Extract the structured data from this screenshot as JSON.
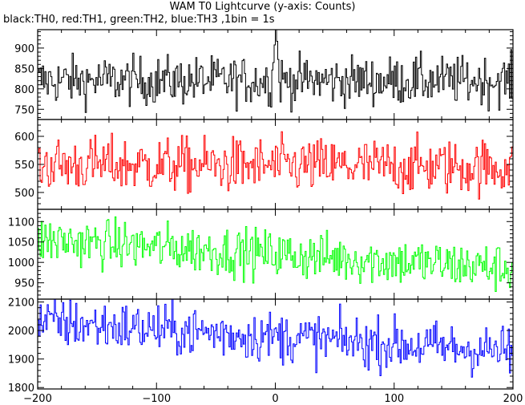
{
  "chart_data": {
    "type": "line",
    "title": "WAM T0 Lightcurve (y-axis: Counts)",
    "subtitle": "black:TH0, red:TH1, green:TH2, blue:TH3 ,1bin = 1s",
    "xlabel": "",
    "ylabel": "",
    "xlim": [
      -200,
      200
    ],
    "x_ticks": [
      -200,
      -100,
      0,
      100,
      200
    ],
    "grid": false,
    "legend": "none",
    "panels": [
      {
        "name": "TH0",
        "color": "#000000",
        "ylim": [
          725,
          945
        ],
        "y_ticks": [
          750,
          800,
          850,
          900
        ],
        "baseline": 820,
        "noise": 30,
        "trend_end": 820,
        "peak": {
          "x": 0,
          "value": 945,
          "width": 2
        },
        "values_sampled": [
          805,
          830,
          815,
          845,
          810,
          820,
          835,
          800,
          825,
          815,
          830,
          810,
          820,
          840,
          945,
          830,
          810,
          825,
          815,
          820,
          835,
          810,
          825,
          815,
          820
        ]
      },
      {
        "name": "TH1",
        "color": "#ff0000",
        "ylim": [
          470,
          630
        ],
        "y_ticks": [
          500,
          550,
          600
        ],
        "baseline": 550,
        "noise": 25,
        "trend_end": 545,
        "values_sampled": [
          545,
          560,
          540,
          575,
          550,
          530,
          565,
          545,
          555,
          540,
          570,
          550,
          545,
          560,
          580,
          540,
          550,
          535,
          560,
          545,
          550,
          540,
          555,
          545,
          550
        ]
      },
      {
        "name": "TH2",
        "color": "#00ff00",
        "ylim": [
          910,
          1130
        ],
        "y_ticks": [
          950,
          1000,
          1050,
          1100
        ],
        "baseline": 1055,
        "noise": 30,
        "trend_end": 985,
        "values_sampled": [
          1060,
          1050,
          1045,
          1055,
          1040,
          1035,
          1045,
          1030,
          1025,
          1030,
          1020,
          1015,
          1020,
          1010,
          1005,
          1010,
          1000,
          995,
          1000,
          990,
          995,
          985,
          990,
          980,
          985
        ]
      },
      {
        "name": "TH3",
        "color": "#0000ff",
        "ylim": [
          1795,
          2110
        ],
        "y_ticks": [
          1800,
          1900,
          2000,
          2100
        ],
        "baseline": 2030,
        "noise": 45,
        "trend_end": 1925,
        "values_sampled": [
          2035,
          2020,
          2010,
          2025,
          2005,
          1995,
          2010,
          1990,
          1985,
          1995,
          1980,
          1975,
          1985,
          1970,
          1960,
          1965,
          1955,
          1950,
          1960,
          1945,
          1940,
          1945,
          1935,
          1930,
          1925
        ]
      }
    ]
  }
}
